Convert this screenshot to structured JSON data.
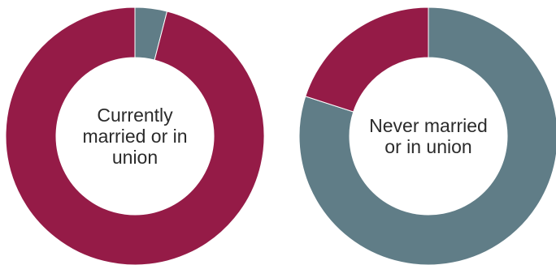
{
  "colors": {
    "married": "#951b47",
    "other": "#607d87",
    "separator": "#ffffff"
  },
  "chart_data": [
    {
      "type": "pie",
      "variant": "donut",
      "center_label_lines": [
        "Currently",
        "married or in",
        "union"
      ],
      "slices": [
        {
          "value": 4,
          "color_key": "other"
        },
        {
          "value": 96,
          "color_key": "married"
        }
      ]
    },
    {
      "type": "pie",
      "variant": "donut",
      "center_label_lines": [
        "Never married",
        "or in union"
      ],
      "slices": [
        {
          "value": 80,
          "color_key": "other"
        },
        {
          "value": 20,
          "color_key": "married"
        }
      ]
    }
  ]
}
